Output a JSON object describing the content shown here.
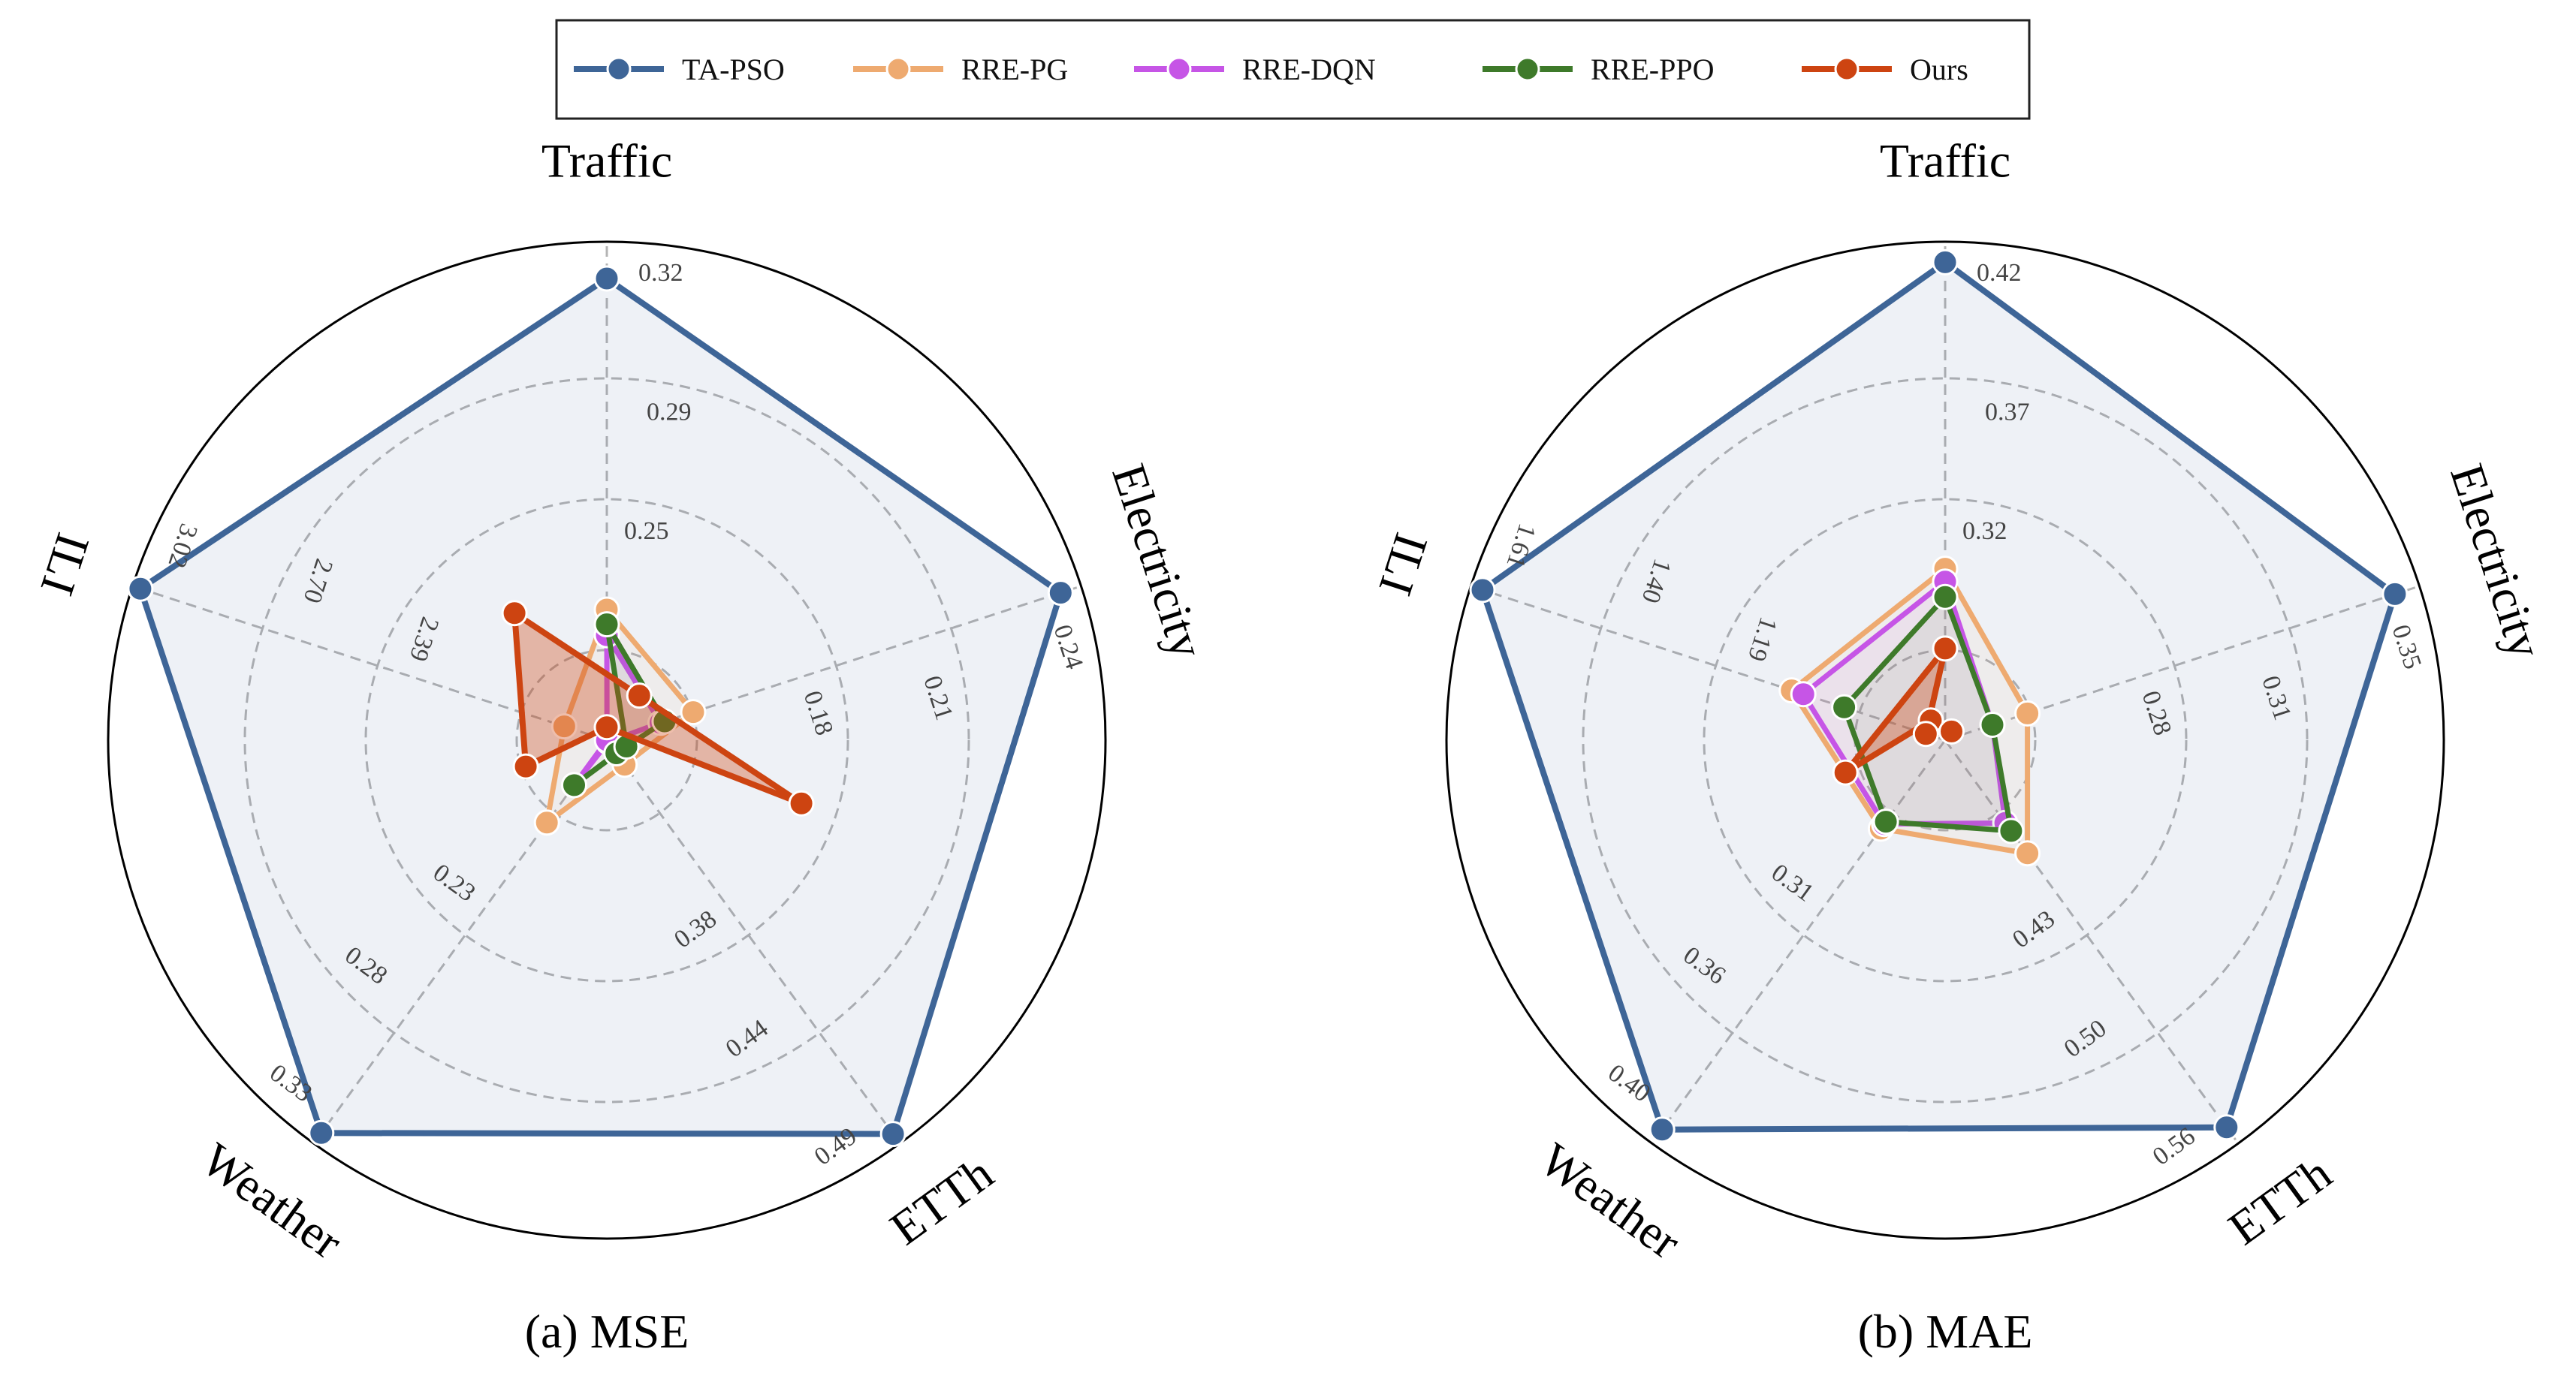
{
  "legend": {
    "items": [
      {
        "label": "TA-PSO",
        "color": "#3E6597"
      },
      {
        "label": "RRE-PG",
        "color": "#EEAA70"
      },
      {
        "label": "RRE-DQN",
        "color": "#C655E6"
      },
      {
        "label": "RRE-PPO",
        "color": "#3E7A2A"
      },
      {
        "label": "Ours",
        "color": "#CD4411"
      }
    ]
  },
  "chart_data": [
    {
      "type": "radar",
      "caption": "(a) MSE",
      "axes": [
        "Traffic",
        "Electricity",
        "ETTh",
        "Weather",
        "ILI"
      ],
      "ticks": {
        "Traffic": [
          "0.25",
          "0.29",
          "0.32"
        ],
        "Electricity": [
          "0.18",
          "0.21",
          "0.24"
        ],
        "ETTh": [
          "0.38",
          "0.44",
          "0.49"
        ],
        "Weather": [
          "0.23",
          "0.28",
          "0.33"
        ],
        "ILI": [
          "2.39",
          "2.70",
          "3.02"
        ]
      },
      "series": [
        {
          "name": "TA-PSO",
          "values": [
            0.31,
            0.235,
            0.485,
            0.325,
            3.0
          ]
        },
        {
          "name": "RRE-PG",
          "values": [
            0.22,
            0.145,
            0.29,
            0.176,
            1.91
          ]
        },
        {
          "name": "RRE-DQN",
          "values": [
            0.213,
            0.137,
            0.278,
            0.158,
            1.8
          ]
        },
        {
          "name": "RRE-PPO",
          "values": [
            0.216,
            0.138,
            0.284,
            0.158,
            1.75
          ]
        },
        {
          "name": "Ours",
          "values": [
            0.188,
            0.104,
            0.21,
            0.115,
            1.3
          ]
        }
      ]
    },
    {
      "type": "radar",
      "caption": "(b) MAE",
      "axes": [
        "Traffic",
        "Electricity",
        "ETTh",
        "Weather",
        "ILI"
      ],
      "ticks": {
        "Traffic": [
          "0.32",
          "0.37",
          "0.42"
        ],
        "Electricity": [
          "0.28",
          "0.31",
          "0.35"
        ],
        "ETTh": [
          "0.43",
          "0.50",
          "0.56"
        ],
        "Weather": [
          "0.31",
          "0.36",
          "0.40"
        ],
        "ILI": [
          "1.19",
          "1.40",
          "1.61"
        ]
      },
      "series": [
        {
          "name": "TA-PSO",
          "values": [
            0.412,
            0.343,
            0.55,
            0.394,
            1.59
          ]
        },
        {
          "name": "RRE-PG",
          "values": [
            0.293,
            0.238,
            0.379,
            0.264,
            1.06
          ]
        },
        {
          "name": "RRE-DQN",
          "values": [
            0.288,
            0.228,
            0.36,
            0.262,
            1.04
          ]
        },
        {
          "name": "RRE-PPO",
          "values": [
            0.282,
            0.228,
            0.365,
            0.261,
            0.97
          ]
        },
        {
          "name": "Ours",
          "values": [
            0.262,
            0.186,
            0.296,
            0.222,
            0.83
          ]
        }
      ]
    }
  ]
}
